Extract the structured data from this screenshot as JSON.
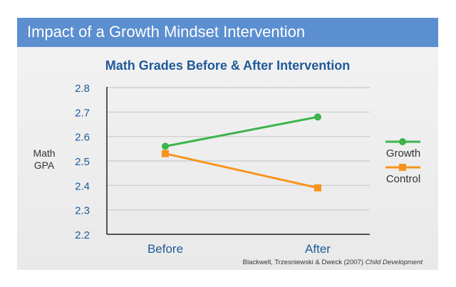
{
  "banner": {
    "title": "Impact of a Growth Mindset Intervention"
  },
  "source": {
    "authors": "Blackwell, Trzesniewski & Dweck (2007) ",
    "journal": "Child Development"
  },
  "colors": {
    "banner": "#5b8fd0",
    "title": "#1f5a97",
    "axis_text": "#1f5a97",
    "growth": "#3cb44b",
    "control": "#f7941d"
  },
  "chart_data": {
    "type": "line",
    "title": "Math Grades Before & After Intervention",
    "xlabel": "",
    "ylabel": "Math GPA",
    "categories": [
      "Before",
      "After"
    ],
    "ylim": [
      2.2,
      2.8
    ],
    "yticks": [
      "2.8",
      "2.7",
      "2.6",
      "2.5",
      "2.4",
      "2.3",
      "2.2"
    ],
    "grid": true,
    "legend_position": "right",
    "series": [
      {
        "name": "Growth",
        "values": [
          2.56,
          2.68
        ],
        "color": "#3cb44b",
        "marker": "circle"
      },
      {
        "name": "Control",
        "values": [
          2.53,
          2.39
        ],
        "color": "#f7941d",
        "marker": "square"
      }
    ]
  }
}
